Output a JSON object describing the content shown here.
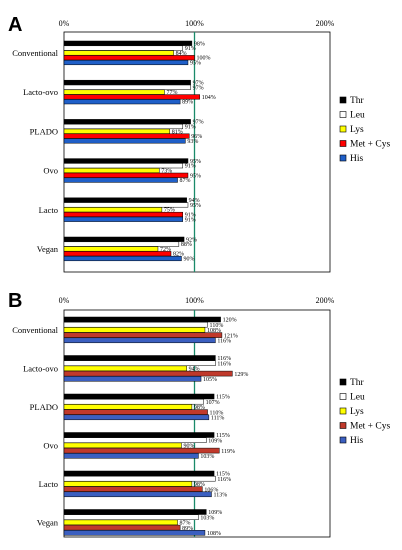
{
  "chart_data": [
    {
      "type": "bar",
      "panel": "A",
      "orientation": "horizontal",
      "categories": [
        "Conventional",
        "Lacto-ovo",
        "PLADO",
        "Ovo",
        "Lacto",
        "Vegan"
      ],
      "x_ticks": [
        "0%",
        "100%",
        "200%"
      ],
      "xlim": [
        0,
        200
      ],
      "reference_line": 100,
      "series": [
        {
          "name": "Thr",
          "color": "#000000",
          "values": [
            98,
            97,
            97,
            95,
            94,
            92
          ]
        },
        {
          "name": "Leu",
          "color": "#ffffff",
          "values": [
            91,
            97,
            91,
            91,
            95,
            88
          ]
        },
        {
          "name": "Lys",
          "color": "#ffff00",
          "values": [
            84,
            77,
            81,
            73,
            75,
            72
          ]
        },
        {
          "name": "Met + Cys",
          "color": "#ff0000",
          "values": [
            100,
            104,
            96,
            95,
            91,
            82
          ]
        },
        {
          "name": "His",
          "color": "#1f5fc8",
          "values": [
            95,
            89,
            93,
            87,
            91,
            90
          ]
        }
      ],
      "labels": [
        [
          "98%",
          "91%",
          "84%",
          "100%",
          "95%"
        ],
        [
          "97%",
          "97%",
          "77%",
          "104%",
          "89%"
        ],
        [
          "97%",
          "91%",
          "81%",
          "96%",
          "93%"
        ],
        [
          "95%",
          "91%",
          "73%",
          "95%",
          "87%"
        ],
        [
          "94%",
          "95%",
          "75%",
          "91%",
          "91%"
        ],
        [
          "92%",
          "88%",
          "72%",
          "82%",
          "90%"
        ]
      ],
      "legend": [
        "Thr",
        "Leu",
        "Lys",
        "Met + Cys",
        "His"
      ],
      "legend_position": "right"
    },
    {
      "type": "bar",
      "panel": "B",
      "orientation": "horizontal",
      "categories": [
        "Conventional",
        "Lacto-ovo",
        "PLADO",
        "Ovo",
        "Lacto",
        "Vegan"
      ],
      "x_ticks": [
        "0%",
        "100%",
        "200%"
      ],
      "xlim": [
        0,
        200
      ],
      "reference_line": 100,
      "series": [
        {
          "name": "Thr",
          "color": "#000000",
          "values": [
            120,
            116,
            115,
            115,
            115,
            109
          ]
        },
        {
          "name": "Leu",
          "color": "#ffffff",
          "values": [
            110,
            116,
            107,
            109,
            116,
            103
          ]
        },
        {
          "name": "Lys",
          "color": "#ffff00",
          "values": [
            108,
            94,
            98,
            90,
            98,
            87
          ]
        },
        {
          "name": "Met + Cys",
          "color": "#c0392b",
          "values": [
            121,
            129,
            110,
            119,
            106,
            89
          ]
        },
        {
          "name": "His",
          "color": "#3b5fc0",
          "values": [
            116,
            105,
            111,
            103,
            113,
            108
          ]
        }
      ],
      "labels": [
        [
          "120%",
          "110%",
          "108%",
          "121%",
          "116%"
        ],
        [
          "116%",
          "116%",
          "94%",
          "129%",
          "105%"
        ],
        [
          "115%",
          "107%",
          "98%",
          "110%",
          "111%"
        ],
        [
          "115%",
          "109%",
          "90%",
          "119%",
          "103%"
        ],
        [
          "115%",
          "116%",
          "98%",
          "106%",
          "113%"
        ],
        [
          "109%",
          "103%",
          "87%",
          "89%",
          "108%"
        ]
      ],
      "legend": [
        "Thr",
        "Leu",
        "Lys",
        "Met + Cys",
        "His"
      ],
      "legend_position": "right"
    }
  ]
}
